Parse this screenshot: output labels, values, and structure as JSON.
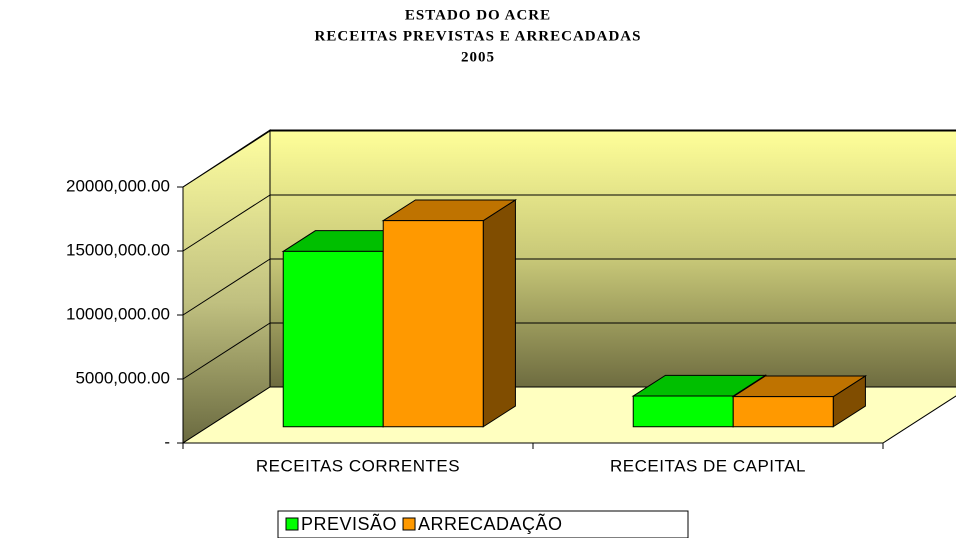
{
  "chart_data": {
    "type": "bar3d",
    "title": [
      "ESTADO DO ACRE",
      "RECEITAS PREVISTAS E ARRECADADAS",
      "2005"
    ],
    "categories": [
      "RECEITAS CORRENTES",
      "RECEITAS DE CAPITAL"
    ],
    "series": [
      {
        "name": "PREVISÃO",
        "color": "#00ff00",
        "values": [
          13700000,
          2400000
        ]
      },
      {
        "name": "ARRECADAÇÃO",
        "color": "#ff9900",
        "values": [
          16100000,
          2350000
        ]
      }
    ],
    "ylim": [
      0,
      20000000
    ],
    "yticks": [
      {
        "value": 0,
        "label": "-"
      },
      {
        "value": 5000000,
        "label": "5000,000.00"
      },
      {
        "value": 10000000,
        "label": "10000,000.00"
      },
      {
        "value": 15000000,
        "label": "15000,000.00"
      },
      {
        "value": 20000000,
        "label": "20000,000.00"
      }
    ],
    "grid": true,
    "legend": "bottom"
  }
}
